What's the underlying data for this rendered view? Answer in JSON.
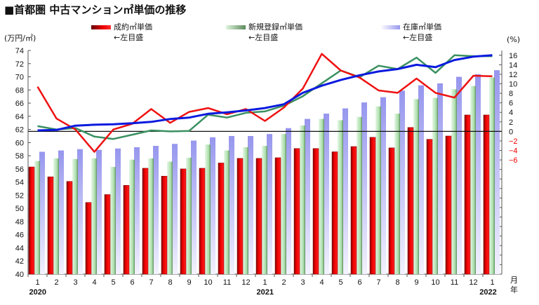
{
  "chart_data": {
    "type": "bar",
    "title": "■首都圏 中古マンション㎡単価の推移",
    "ylabel_left": "(万円/㎡)",
    "ylabel_right": "(%)",
    "ylim_left": [
      40,
      74
    ],
    "yticks_left": [
      40,
      42,
      44,
      46,
      48,
      50,
      52,
      54,
      56,
      58,
      60,
      62,
      64,
      66,
      68,
      70,
      72,
      74
    ],
    "ylim_right": [
      -30,
      17
    ],
    "yticks_right": [
      16,
      14,
      12,
      10,
      8,
      6,
      4,
      2,
      0,
      -2,
      -4,
      -6
    ],
    "categories": [
      "1",
      "2",
      "3",
      "4",
      "5",
      "6",
      "7",
      "8",
      "9",
      "10",
      "11",
      "12",
      "1",
      "2",
      "3",
      "4",
      "5",
      "6",
      "7",
      "8",
      "9",
      "10",
      "11",
      "12",
      "1"
    ],
    "years": [
      {
        "label": "2020",
        "index": 0
      },
      {
        "label": "2021",
        "index": 12
      },
      {
        "label": "2022",
        "index": 24
      }
    ],
    "xlabel_month": "月",
    "xlabel_year": "年",
    "bar_series": [
      {
        "name": "成約㎡単価",
        "axis_note": "←左目盛",
        "color": "#e00000",
        "values": [
          56.3,
          54.8,
          54.1,
          50.9,
          52.1,
          53.5,
          56.1,
          54.9,
          56.0,
          56.1,
          56.9,
          57.6,
          57.6,
          57.7,
          59.1,
          59.1,
          58.6,
          59.4,
          60.8,
          59.2,
          62.3,
          60.5,
          61.0,
          64.2,
          64.2
        ]
      },
      {
        "name": "新規登録㎡単価",
        "axis_note": "←左目盛",
        "color": "#9fd89f",
        "values": [
          57.2,
          57.6,
          57.5,
          57.6,
          56.3,
          57.4,
          57.6,
          57.1,
          57.7,
          59.7,
          58.8,
          59.3,
          59.5,
          61.3,
          62.6,
          63.6,
          63.4,
          63.9,
          65.5,
          64.4,
          66.6,
          66.8,
          68.1,
          68.6,
          69.9
        ]
      },
      {
        "name": "在庫㎡単価",
        "axis_note": "←左目盛",
        "color": "#9999ee",
        "values": [
          58.6,
          58.8,
          59.0,
          58.9,
          59.1,
          59.3,
          59.5,
          59.8,
          60.3,
          60.8,
          61.0,
          61.0,
          61.3,
          62.2,
          63.6,
          64.4,
          65.2,
          66.1,
          66.9,
          67.9,
          68.7,
          69.0,
          70.0,
          70.4,
          71.0
        ]
      }
    ],
    "line_series": [
      {
        "color": "#ee1111",
        "axis": "right",
        "values": [
          9.4,
          2.7,
          0.4,
          -4.3,
          0.4,
          1.6,
          4.7,
          1.8,
          4.1,
          4.9,
          3.6,
          4.7,
          2.2,
          5.0,
          9.0,
          16.3,
          12.8,
          11.3,
          8.6,
          8.1,
          11.1,
          8.1,
          7.1,
          11.7,
          11.6
        ]
      },
      {
        "color": "#3a9060",
        "axis": "right",
        "values": [
          1.1,
          0.4,
          0.7,
          -1.1,
          -1.6,
          -0.7,
          0.2,
          0.0,
          0.1,
          3.5,
          2.9,
          3.9,
          4.2,
          5.4,
          7.4,
          10.1,
          12.8,
          11.4,
          13.8,
          13.1,
          15.5,
          12.3,
          16.0,
          15.8,
          15.8
        ]
      },
      {
        "color": "#0a1adf",
        "axis": "right",
        "values": [
          0.2,
          0.3,
          1.2,
          1.4,
          1.5,
          1.7,
          2.0,
          2.6,
          2.9,
          3.7,
          4.0,
          4.4,
          4.9,
          5.7,
          8.1,
          9.6,
          10.8,
          11.8,
          12.6,
          13.1,
          14.0,
          13.5,
          15.0,
          15.7,
          16.0
        ]
      }
    ],
    "zero_line_right": 0
  }
}
